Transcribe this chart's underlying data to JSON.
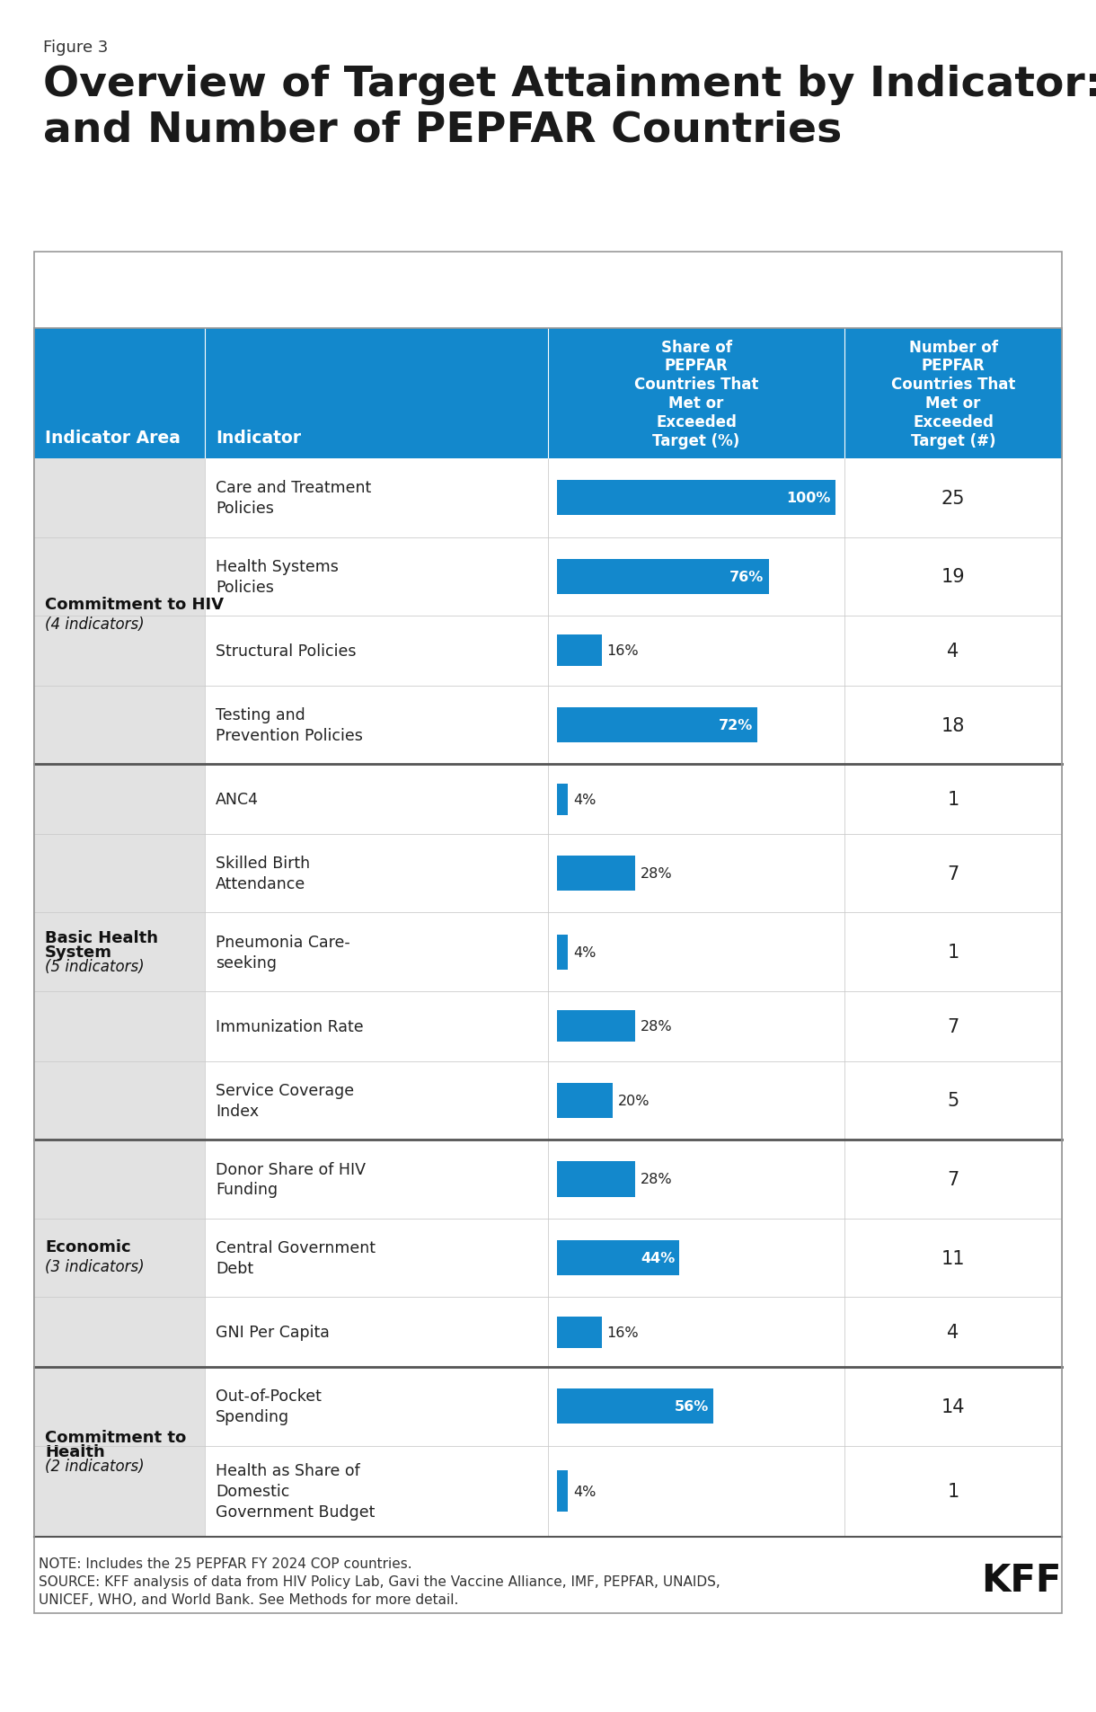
{
  "figure_label": "Figure 3",
  "title": "Overview of Target Attainment by Indicator: Share\nand Number of PEPFAR Countries",
  "header_bg_color": "#1388cc",
  "col1_header": "Indicator Area",
  "col2_header": "Indicator",
  "col3_header": "Share of\nPEPFAR\nCountries That\nMet or\nExceeded\nTarget (%)",
  "col4_header": "Number of\nPEPFAR\nCountries That\nMet or\nExceeded\nTarget (#)",
  "rows": [
    {
      "group": "Commitment to HIV\n(4 indicators)",
      "group_rows": 4,
      "indicator": "Care and Treatment\nPolicies",
      "pct": 100,
      "pct_label": "100%",
      "num": "25",
      "label_inside": true
    },
    {
      "group": "",
      "group_rows": 0,
      "indicator": "Health Systems\nPolicies",
      "pct": 76,
      "pct_label": "76%",
      "num": "19",
      "label_inside": true
    },
    {
      "group": "",
      "group_rows": 0,
      "indicator": "Structural Policies",
      "pct": 16,
      "pct_label": "16%",
      "num": "4",
      "label_inside": false
    },
    {
      "group": "",
      "group_rows": 0,
      "indicator": "Testing and\nPrevention Policies",
      "pct": 72,
      "pct_label": "72%",
      "num": "18",
      "label_inside": true
    },
    {
      "group": "Basic Health\nSystem\n(5 indicators)",
      "group_rows": 5,
      "indicator": "ANC4",
      "pct": 4,
      "pct_label": "4%",
      "num": "1",
      "label_inside": false
    },
    {
      "group": "",
      "group_rows": 0,
      "indicator": "Skilled Birth\nAttendance",
      "pct": 28,
      "pct_label": "28%",
      "num": "7",
      "label_inside": false
    },
    {
      "group": "",
      "group_rows": 0,
      "indicator": "Pneumonia Care-\nseeking",
      "pct": 4,
      "pct_label": "4%",
      "num": "1",
      "label_inside": false
    },
    {
      "group": "",
      "group_rows": 0,
      "indicator": "Immunization Rate",
      "pct": 28,
      "pct_label": "28%",
      "num": "7",
      "label_inside": false
    },
    {
      "group": "",
      "group_rows": 0,
      "indicator": "Service Coverage\nIndex",
      "pct": 20,
      "pct_label": "20%",
      "num": "5",
      "label_inside": false
    },
    {
      "group": "Economic\n(3 indicators)",
      "group_rows": 3,
      "indicator": "Donor Share of HIV\nFunding",
      "pct": 28,
      "pct_label": "28%",
      "num": "7",
      "label_inside": false
    },
    {
      "group": "",
      "group_rows": 0,
      "indicator": "Central Government\nDebt",
      "pct": 44,
      "pct_label": "44%",
      "num": "11",
      "label_inside": true
    },
    {
      "group": "",
      "group_rows": 0,
      "indicator": "GNI Per Capita",
      "pct": 16,
      "pct_label": "16%",
      "num": "4",
      "label_inside": false
    },
    {
      "group": "Commitment to\nHealth\n(2 indicators)",
      "group_rows": 2,
      "indicator": "Out-of-Pocket\nSpending",
      "pct": 56,
      "pct_label": "56%",
      "num": "14",
      "label_inside": true
    },
    {
      "group": "",
      "group_rows": 0,
      "indicator": "Health as Share of\nDomestic\nGovernment Budget",
      "pct": 4,
      "pct_label": "4%",
      "num": "1",
      "label_inside": false
    }
  ],
  "note_line1": "NOTE: Includes the 25 PEPFAR FY 2024 COP countries.",
  "note_line2": "SOURCE: KFF analysis of data from HIV Policy Lab, Gavi the Vaccine Alliance, IMF, PEPFAR, UNAIDS,",
  "note_line3": "UNICEF, WHO, and World Bank. See Methods for more detail.",
  "group_bg_color": "#e2e2e2",
  "white": "#ffffff",
  "dark_text": "#1a1a1a",
  "light_border": "#cccccc",
  "dark_border": "#555555",
  "outer_border": "#999999"
}
